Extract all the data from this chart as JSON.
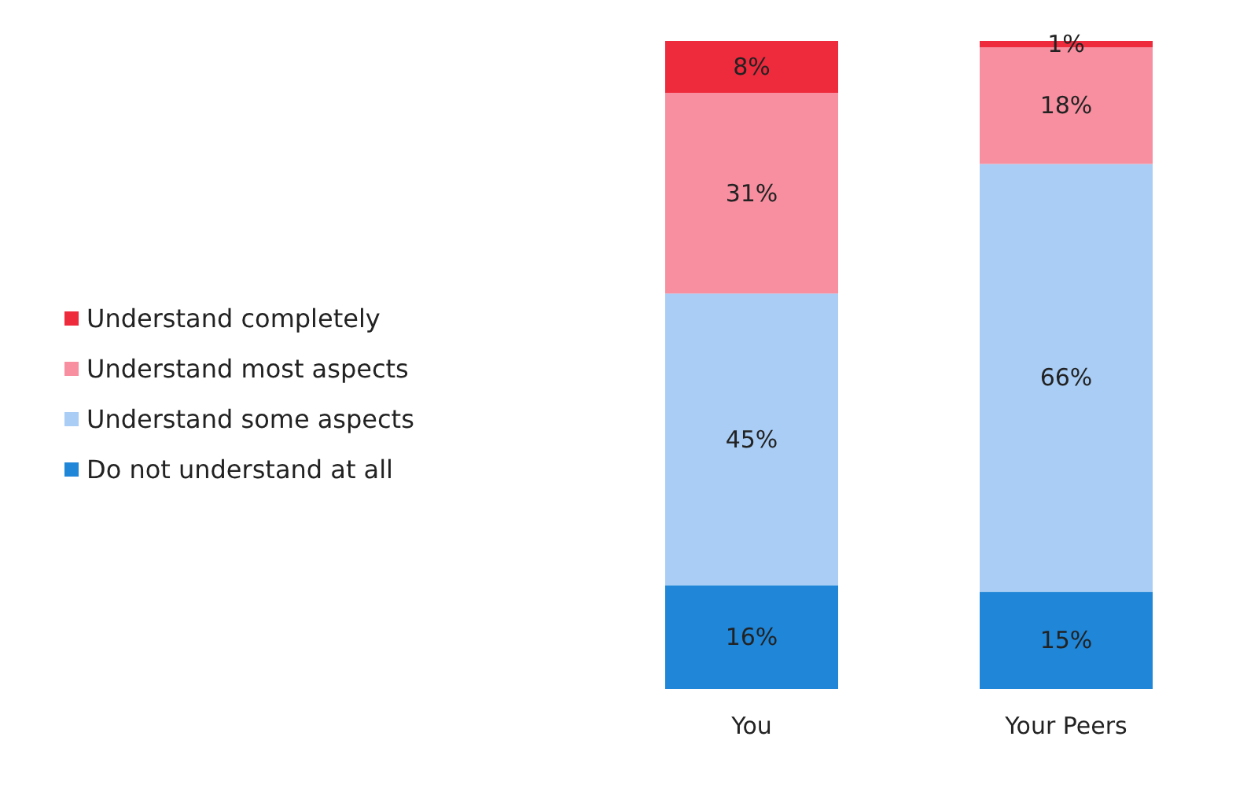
{
  "chart_data": {
    "type": "bar",
    "stacked": true,
    "categories": [
      "You",
      "Your Peers"
    ],
    "legend": "left",
    "series": [
      {
        "name": "Do not understand at all",
        "color": "#1f86d8",
        "values": [
          16,
          15
        ],
        "value_labels": [
          "16%",
          "15%"
        ]
      },
      {
        "name": "Understand some aspects",
        "color": "#a9cdf5",
        "values": [
          45,
          66
        ],
        "value_labels": [
          "45%",
          "66%"
        ]
      },
      {
        "name": "Understand most aspects",
        "color": "#f78fa0",
        "values": [
          31,
          18
        ],
        "value_labels": [
          "31%",
          "18%"
        ]
      },
      {
        "name": "Understand completely",
        "color": "#ee2a3d",
        "values": [
          8,
          1
        ],
        "value_labels": [
          "8%",
          "1%"
        ]
      }
    ]
  }
}
